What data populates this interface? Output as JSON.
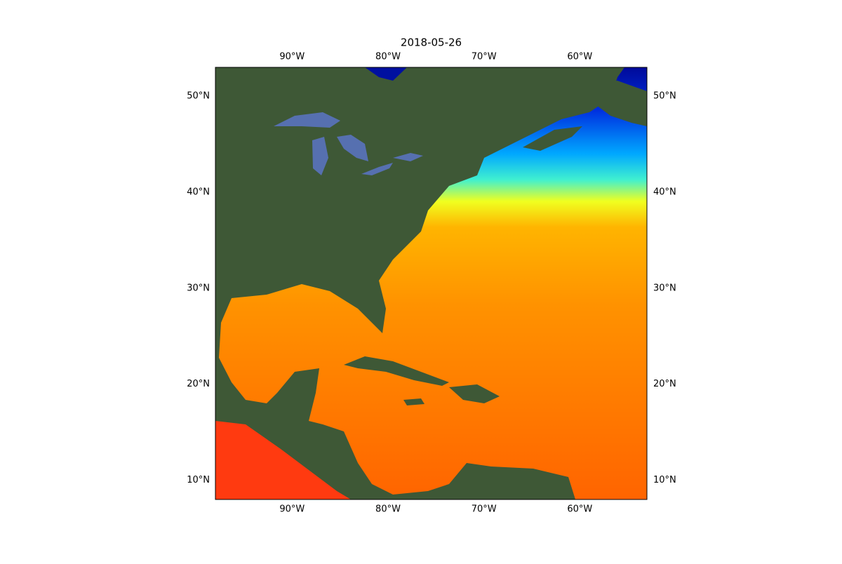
{
  "chart_data": {
    "type": "map",
    "title": "2018-05-26",
    "xlim": [
      -98,
      -53
    ],
    "ylim": [
      8,
      53
    ],
    "xticks": [
      {
        "value": -90,
        "label": "90°W"
      },
      {
        "value": -80,
        "label": "80°W"
      },
      {
        "value": -70,
        "label": "70°W"
      },
      {
        "value": -60,
        "label": "60°W"
      }
    ],
    "yticks": [
      {
        "value": 10,
        "label": "10°N"
      },
      {
        "value": 20,
        "label": "20°N"
      },
      {
        "value": 30,
        "label": "30°N"
      },
      {
        "value": 40,
        "label": "40°N"
      },
      {
        "value": 50,
        "label": "50°N"
      }
    ]
  }
}
